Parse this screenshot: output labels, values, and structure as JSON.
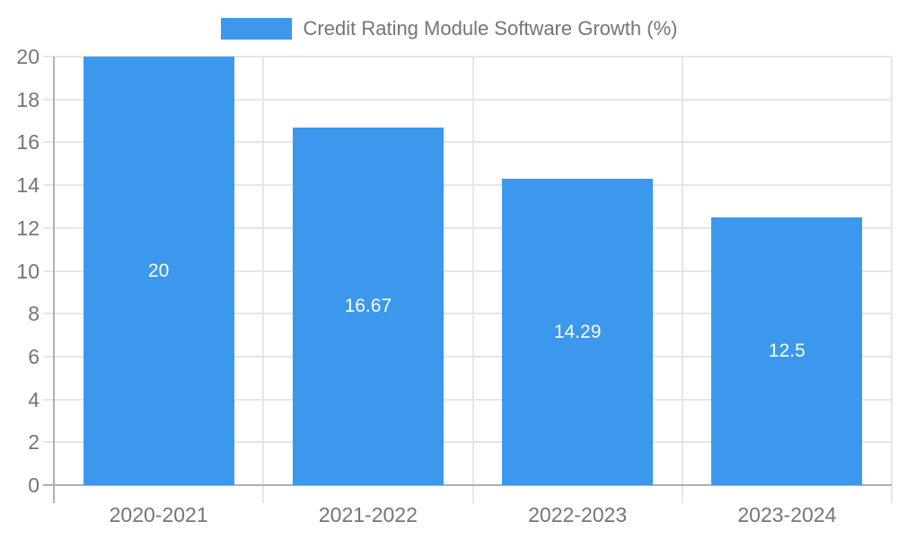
{
  "legend": {
    "label": "Credit Rating Module Software Growth (%)"
  },
  "colors": {
    "bar": "#3B98EC",
    "axis_line": "#b0b0b0",
    "gridline": "#e6e6e6",
    "text": "#757575",
    "bar_label_text": "#ffffff",
    "background": "#ffffff"
  },
  "chart_data": {
    "type": "bar",
    "title": "Credit Rating Module Software Growth (%)",
    "categories": [
      "2020-2021",
      "2021-2022",
      "2022-2023",
      "2023-2024"
    ],
    "values": [
      20,
      16.67,
      14.29,
      12.5
    ],
    "bar_labels": [
      "20",
      "16.67",
      "14.29",
      "12.5"
    ],
    "xlabel": "",
    "ylabel": "",
    "ylim": [
      0,
      20
    ],
    "ytick_step": 2,
    "ytick_labels": [
      "0",
      "2",
      "4",
      "6",
      "8",
      "10",
      "12",
      "14",
      "16",
      "18",
      "20"
    ],
    "grid": true,
    "legend_position": "top",
    "bar_color": "#3B98EC",
    "bar_width_fraction": 0.72
  }
}
